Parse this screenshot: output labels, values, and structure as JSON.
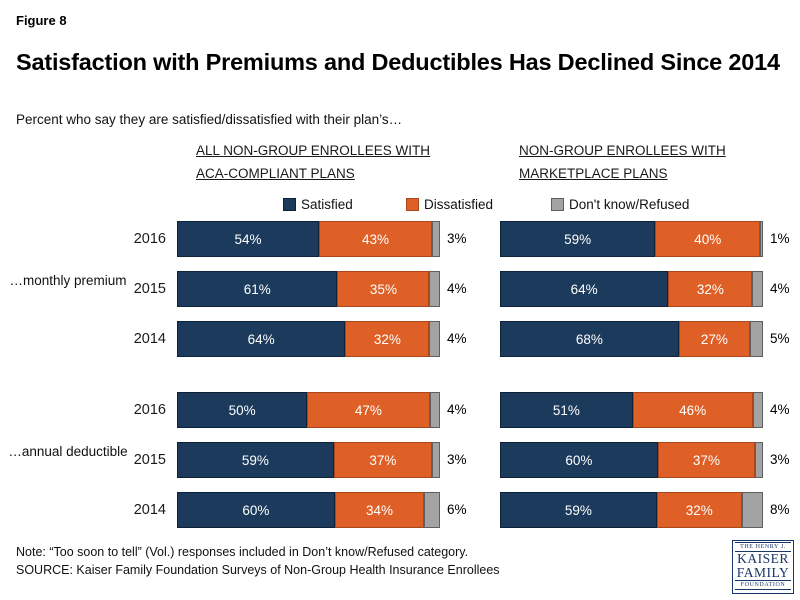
{
  "page": {
    "figure_label": "Figure 8",
    "title": "Satisfaction with Premiums and Deductibles Has Declined Since 2014",
    "subtitle": "Percent who say they are satisfied/dissatisfied with their plan’s…"
  },
  "legend": {
    "position": "top-center",
    "items": [
      {
        "label": "Satisfied",
        "color": "#1B3A5C",
        "border": "#0d2238"
      },
      {
        "label": "Dissatisfied",
        "color": "#DE6027",
        "border": "#a8481c"
      },
      {
        "label": "Don't know/Refused",
        "color": "#A3A3A3",
        "border": "#5f5f5f"
      }
    ]
  },
  "chart_data": [
    {
      "type": "bar",
      "orientation": "horizontal",
      "stacked": true,
      "xlim": [
        0,
        100
      ],
      "unit": "%",
      "grid": false,
      "show_years": true,
      "title": "ALL NON-GROUP ENROLLEES WITH ACA-COMPLIANT PLANS",
      "title_lines": [
        "ALL NON-GROUP ENROLLEES WITH",
        "ACA-COMPLIANT PLANS"
      ],
      "series_names": [
        "Satisfied",
        "Dissatisfied",
        "Don't know/Refused"
      ],
      "groups": [
        {
          "label": "…monthly premium",
          "rows": [
            {
              "year": "2016",
              "values": [
                54,
                43,
                3
              ],
              "labels": [
                "54%",
                "43%",
                "3%"
              ]
            },
            {
              "year": "2015",
              "values": [
                61,
                35,
                4
              ],
              "labels": [
                "61%",
                "35%",
                "4%"
              ]
            },
            {
              "year": "2014",
              "values": [
                64,
                32,
                4
              ],
              "labels": [
                "64%",
                "32%",
                "4%"
              ]
            }
          ]
        },
        {
          "label": "…annual deductible",
          "rows": [
            {
              "year": "2016",
              "values": [
                50,
                47,
                4
              ],
              "labels": [
                "50%",
                "47%",
                "4%"
              ]
            },
            {
              "year": "2015",
              "values": [
                59,
                37,
                3
              ],
              "labels": [
                "59%",
                "37%",
                "3%"
              ]
            },
            {
              "year": "2014",
              "values": [
                60,
                34,
                6
              ],
              "labels": [
                "60%",
                "34%",
                "6%"
              ]
            }
          ]
        }
      ]
    },
    {
      "type": "bar",
      "orientation": "horizontal",
      "stacked": true,
      "xlim": [
        0,
        100
      ],
      "unit": "%",
      "grid": false,
      "show_years": false,
      "title": "NON-GROUP ENROLLEES WITH MARKETPLACE PLANS",
      "title_lines": [
        "NON-GROUP ENROLLEES WITH",
        "MARKETPLACE PLANS"
      ],
      "series_names": [
        "Satisfied",
        "Dissatisfied",
        "Don't know/Refused"
      ],
      "groups": [
        {
          "label": "…monthly premium",
          "rows": [
            {
              "year": "2016",
              "values": [
                59,
                40,
                1
              ],
              "labels": [
                "59%",
                "40%",
                "1%"
              ]
            },
            {
              "year": "2015",
              "values": [
                64,
                32,
                4
              ],
              "labels": [
                "64%",
                "32%",
                "4%"
              ]
            },
            {
              "year": "2014",
              "values": [
                68,
                27,
                5
              ],
              "labels": [
                "68%",
                "27%",
                "5%"
              ]
            }
          ]
        },
        {
          "label": "…annual deductible",
          "rows": [
            {
              "year": "2016",
              "values": [
                51,
                46,
                4
              ],
              "labels": [
                "51%",
                "46%",
                "4%"
              ]
            },
            {
              "year": "2015",
              "values": [
                60,
                37,
                3
              ],
              "labels": [
                "60%",
                "37%",
                "3%"
              ]
            },
            {
              "year": "2014",
              "values": [
                59,
                32,
                8
              ],
              "labels": [
                "59%",
                "32%",
                "8%"
              ]
            }
          ]
        }
      ]
    }
  ],
  "footer": {
    "note": "Note: “Too soon to tell” (Vol.) responses included in Don’t know/Refused category.",
    "source": "SOURCE: Kaiser Family Foundation Surveys of Non-Group Health Insurance Enrollees"
  },
  "logo": {
    "line1": "THE HENRY J.",
    "line2": "KAISER",
    "line3": "FAMILY",
    "line4": "FOUNDATION"
  }
}
